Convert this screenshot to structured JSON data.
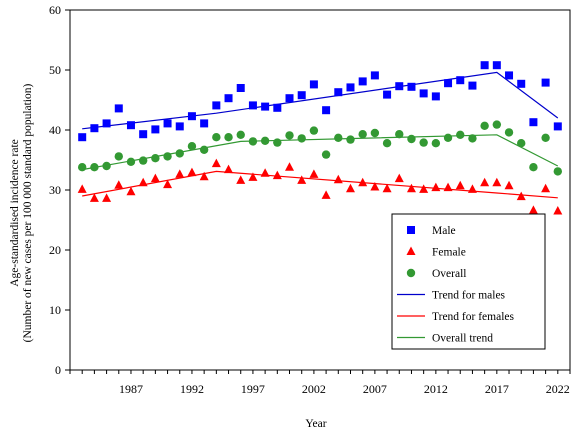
{
  "chart_data": {
    "type": "scatter",
    "title": "",
    "xlabel": "Year",
    "ylabel_line1": "Age-standardised incidence rate",
    "ylabel_line2": "(Number of new cases per 100 000 standard population)",
    "xlim": [
      1982,
      2023
    ],
    "ylim": [
      0,
      60
    ],
    "yticks": [
      0,
      10,
      20,
      30,
      40,
      50,
      60
    ],
    "xticks": [
      1987,
      1992,
      1997,
      2002,
      2007,
      2012,
      2017,
      2022
    ],
    "grid": false,
    "legend_position": "lower-right",
    "x": [
      1983,
      1984,
      1985,
      1986,
      1987,
      1988,
      1989,
      1990,
      1991,
      1992,
      1993,
      1994,
      1995,
      1996,
      1997,
      1998,
      1999,
      2000,
      2001,
      2002,
      2003,
      2004,
      2005,
      2006,
      2007,
      2008,
      2009,
      2010,
      2011,
      2012,
      2013,
      2014,
      2015,
      2016,
      2017,
      2018,
      2019,
      2020,
      2021,
      2022
    ],
    "series": [
      {
        "name": "Male",
        "kind": "points",
        "marker": "square",
        "color": "#0000ff",
        "values": [
          38.8,
          40.3,
          41.1,
          43.6,
          40.8,
          39.3,
          40.1,
          41.1,
          40.6,
          42.3,
          41.1,
          44.1,
          45.3,
          47.0,
          44.1,
          43.9,
          43.7,
          45.3,
          45.8,
          47.6,
          43.3,
          46.3,
          47.1,
          48.1,
          49.1,
          45.9,
          47.3,
          47.2,
          46.1,
          45.6,
          47.8,
          48.3,
          47.4,
          50.8,
          50.8,
          49.1,
          47.7,
          41.3,
          47.9,
          40.6
        ]
      },
      {
        "name": "Female",
        "kind": "points",
        "marker": "triangle",
        "color": "#ff0000",
        "values": [
          30.1,
          28.6,
          28.6,
          30.8,
          29.7,
          31.2,
          31.9,
          30.9,
          32.6,
          32.9,
          32.2,
          34.4,
          33.4,
          31.6,
          32.1,
          32.8,
          32.4,
          33.8,
          31.6,
          32.6,
          29.1,
          31.7,
          30.2,
          31.2,
          30.5,
          30.2,
          31.9,
          30.2,
          30.1,
          30.4,
          30.4,
          30.7,
          30.1,
          31.2,
          31.2,
          30.7,
          28.9,
          26.6,
          30.2,
          26.5
        ]
      },
      {
        "name": "Overall",
        "kind": "points",
        "marker": "circle",
        "color": "#339933",
        "values": [
          33.8,
          33.8,
          34.0,
          35.6,
          34.7,
          34.9,
          35.3,
          35.6,
          36.1,
          37.3,
          36.7,
          38.8,
          38.8,
          39.2,
          38.1,
          38.2,
          37.9,
          39.1,
          38.6,
          39.9,
          35.9,
          38.7,
          38.4,
          39.3,
          39.5,
          37.8,
          39.3,
          38.5,
          37.9,
          37.8,
          38.7,
          39.2,
          38.6,
          40.7,
          40.9,
          39.6,
          37.8,
          33.8,
          38.7,
          33.1
        ]
      },
      {
        "name": "Trend for males",
        "kind": "line",
        "color": "#0000cc",
        "x": [
          1983,
          1994,
          2017,
          2022
        ],
        "values": [
          40.2,
          42.8,
          49.6,
          42.0
        ]
      },
      {
        "name": "Trend for females",
        "kind": "line",
        "color": "#ff0000",
        "x": [
          1983,
          1994,
          2017,
          2022
        ],
        "values": [
          29.0,
          33.1,
          29.5,
          28.7
        ]
      },
      {
        "name": "Overall trend",
        "kind": "line",
        "color": "#339933",
        "x": [
          1983,
          1996,
          2017,
          2022
        ],
        "values": [
          33.4,
          38.1,
          39.2,
          34.0
        ]
      }
    ]
  }
}
